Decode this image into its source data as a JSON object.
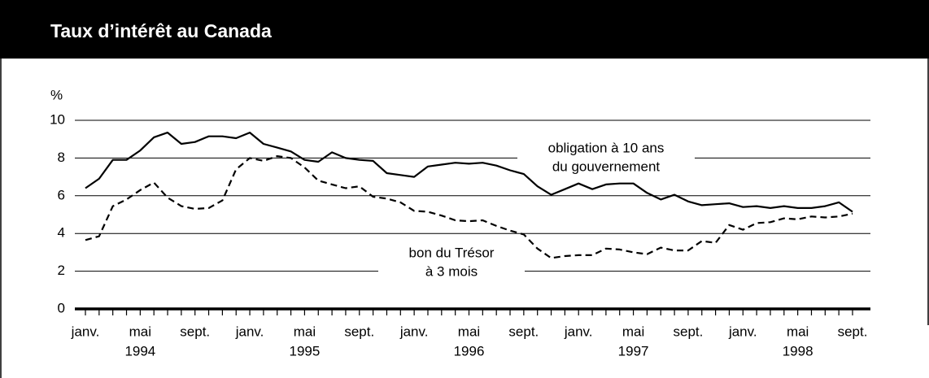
{
  "chart_data": {
    "type": "line",
    "title": "Taux d’intérêt au Canada",
    "y_axis_label": "%",
    "categories": [
      "janv.",
      null,
      null,
      null,
      "mai",
      null,
      null,
      null,
      "sept.",
      null,
      null,
      null,
      "janv.",
      null,
      null,
      null,
      "mai",
      null,
      null,
      null,
      "sept.",
      null,
      null,
      null,
      "janv.",
      null,
      null,
      null,
      "mai",
      null,
      null,
      null,
      "sept.",
      null,
      null,
      null,
      "janv.",
      null,
      null,
      null,
      "mai",
      null,
      null,
      null,
      "sept.",
      null,
      null,
      null,
      "janv.",
      null,
      null,
      null,
      "mai",
      null,
      null,
      null,
      "sept."
    ],
    "category_years": [
      null,
      null,
      null,
      null,
      "1994",
      null,
      null,
      null,
      null,
      null,
      null,
      null,
      null,
      null,
      null,
      null,
      "1995",
      null,
      null,
      null,
      null,
      null,
      null,
      null,
      null,
      null,
      null,
      null,
      "1996",
      null,
      null,
      null,
      null,
      null,
      null,
      null,
      null,
      null,
      null,
      null,
      "1997",
      null,
      null,
      null,
      null,
      null,
      null,
      null,
      null,
      null,
      null,
      null,
      "1998",
      null,
      null,
      null,
      null
    ],
    "ylim": [
      0,
      10
    ],
    "yticks": [
      0,
      2,
      4,
      6,
      8,
      10
    ],
    "grid": true,
    "series": [
      {
        "name": [
          "obligation à 10 ans",
          "du gouvernement"
        ],
        "color": "#000000",
        "dash": false,
        "values": [
          6.4,
          6.9,
          7.9,
          7.9,
          8.4,
          9.1,
          9.35,
          8.75,
          8.85,
          9.15,
          9.15,
          9.05,
          9.35,
          8.75,
          8.55,
          8.35,
          7.9,
          7.8,
          8.3,
          8.0,
          7.9,
          7.85,
          7.2,
          7.1,
          7.0,
          7.55,
          7.65,
          7.75,
          7.7,
          7.75,
          7.6,
          7.35,
          7.15,
          6.5,
          6.05,
          6.35,
          6.65,
          6.35,
          6.6,
          6.65,
          6.65,
          6.15,
          5.8,
          6.05,
          5.7,
          5.5,
          5.55,
          5.6,
          5.4,
          5.45,
          5.35,
          5.45,
          5.35,
          5.35,
          5.45,
          5.65,
          5.15
        ]
      },
      {
        "name": [
          "bon du Trésor",
          "à 3 mois"
        ],
        "color": "#000000",
        "dash": true,
        "values": [
          3.65,
          3.85,
          5.45,
          5.8,
          6.3,
          6.7,
          5.9,
          5.45,
          5.3,
          5.35,
          5.75,
          7.4,
          8.0,
          7.85,
          8.1,
          8.0,
          7.5,
          6.8,
          6.6,
          6.4,
          6.5,
          5.95,
          5.85,
          5.65,
          5.2,
          5.15,
          4.95,
          4.7,
          4.65,
          4.7,
          4.4,
          4.15,
          3.95,
          3.2,
          2.7,
          2.8,
          2.85,
          2.85,
          3.2,
          3.15,
          3.0,
          2.9,
          3.25,
          3.1,
          3.1,
          3.6,
          3.5,
          4.45,
          4.2,
          4.55,
          4.6,
          4.8,
          4.75,
          4.9,
          4.85,
          4.9,
          5.05
        ]
      }
    ]
  }
}
